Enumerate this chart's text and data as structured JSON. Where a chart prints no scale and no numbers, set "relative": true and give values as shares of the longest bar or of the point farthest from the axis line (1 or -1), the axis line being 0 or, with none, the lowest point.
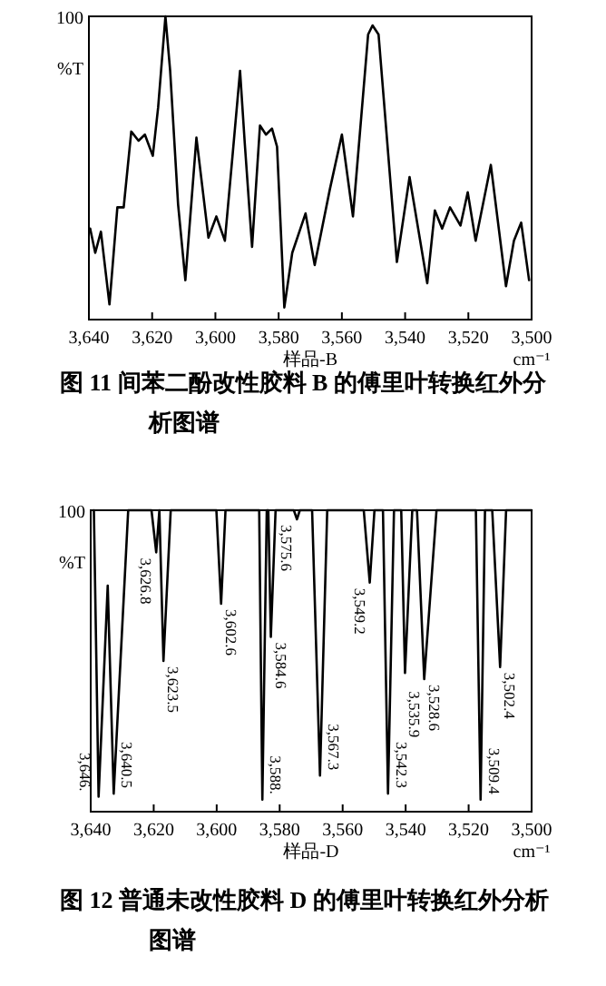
{
  "chart_data": [
    {
      "type": "line",
      "title": "图 11  间苯二酚改性胶料 B 的傅里叶转换红外分析图谱",
      "xlabel": "样品-B",
      "ylabel": "%T",
      "annotations": [
        "100",
        "cm⁻¹"
      ],
      "relative": true,
      "xlim": [
        3640,
        3500
      ],
      "xticks": [
        {
          "value": 3640,
          "label": "3,640"
        },
        {
          "value": 3620,
          "label": "3,620"
        },
        {
          "value": 3600,
          "label": "3,600"
        },
        {
          "value": 3580,
          "label": "3,580"
        },
        {
          "value": 3560,
          "label": "3,560"
        },
        {
          "value": 3540,
          "label": "3,540"
        },
        {
          "value": 3520,
          "label": "3,520"
        },
        {
          "value": 3500,
          "label": "3,500"
        }
      ],
      "series": [
        {
          "color": "#000000",
          "x": [
            3639.6,
            3638,
            3636.2,
            3633.5,
            3631,
            3629,
            3626.6,
            3624.3,
            3622.3,
            3619.8,
            3618.1,
            3615.8,
            3614.3,
            3611.8,
            3609.5,
            3606,
            3602.2,
            3599.7,
            3597,
            3594.5,
            3592.2,
            3590.7,
            3588.4,
            3585.9,
            3584,
            3582.1,
            3580.5,
            3578.2,
            3575.7,
            3571.5,
            3568.6,
            3563.8,
            3560,
            3556.5,
            3551.7,
            3550.3,
            3548.4,
            3542.6,
            3538.6,
            3533,
            3530.6,
            3528.3,
            3525.8,
            3522.5,
            3520.2,
            3517.7,
            3512.9,
            3508.1,
            3505.6,
            3503.3,
            3500.8
          ],
          "values": [
            0.3,
            0.22,
            0.29,
            0.05,
            0.37,
            0.37,
            0.62,
            0.59,
            0.61,
            0.54,
            0.7,
            1,
            0.82,
            0.38,
            0.13,
            0.6,
            0.27,
            0.34,
            0.26,
            0.55,
            0.82,
            0.58,
            0.24,
            0.64,
            0.61,
            0.63,
            0.57,
            0.04,
            0.22,
            0.35,
            0.18,
            0.43,
            0.61,
            0.34,
            0.94,
            0.97,
            0.94,
            0.19,
            0.47,
            0.12,
            0.36,
            0.3,
            0.37,
            0.31,
            0.42,
            0.26,
            0.51,
            0.11,
            0.26,
            0.32,
            0.13
          ]
        }
      ]
    },
    {
      "type": "line",
      "title": "图 12  普通未改性胶料 D 的傅里叶转换红外分析图谱",
      "xlabel": "样品-D",
      "ylabel": "%T",
      "relative": true,
      "xlim": [
        3640,
        3500
      ],
      "annotations": [
        "100",
        "cm⁻¹",
        {
          "text": "3,646.",
          "x": 3637.5,
          "y": 0.05
        },
        {
          "text": "3,640.5",
          "x": 3632.7,
          "y": 0.06
        },
        {
          "text": "3,626.8",
          "x": 3619.2,
          "y": 0.86
        },
        {
          "text": "3,623.5",
          "x": 3616.9,
          "y": 0.5
        },
        {
          "text": "3,602.6",
          "x": 3598.6,
          "y": 0.69
        },
        {
          "text": "3,588.",
          "x": 3585.5,
          "y": 0.04
        },
        {
          "text": "3,584.6",
          "x": 3582.8,
          "y": 0.58
        },
        {
          "text": "3,575.6",
          "x": 3574.5,
          "y": 0.97
        },
        {
          "text": "3,567.3",
          "x": 3567.2,
          "y": 0.12
        },
        {
          "text": "3,549.2",
          "x": 3551.4,
          "y": 0.76
        },
        {
          "text": "3,542.3",
          "x": 3545.6,
          "y": 0.06
        },
        {
          "text": "3,535.9",
          "x": 3540.2,
          "y": 0.46
        },
        {
          "text": "3,528.6",
          "x": 3534.1,
          "y": 0.44
        },
        {
          "text": "3,509.4",
          "x": 3516.2,
          "y": 0.04
        },
        {
          "text": "3,502.4",
          "x": 3510.0,
          "y": 0.48
        }
      ],
      "xticks": [
        {
          "value": 3640,
          "label": "3,640"
        },
        {
          "value": 3620,
          "label": "3,620"
        },
        {
          "value": 3600,
          "label": "3,600"
        },
        {
          "value": 3580,
          "label": "3,580"
        },
        {
          "value": 3560,
          "label": "3,560"
        },
        {
          "value": 3540,
          "label": "3,540"
        },
        {
          "value": 3520,
          "label": "3,520"
        },
        {
          "value": 3500,
          "label": "3,500"
        }
      ],
      "series": [
        {
          "color": "#000000",
          "x": [
            3639.0,
            3637.5,
            3634.6,
            3632.7,
            3628.1,
            3620.7,
            3619.2,
            3618.2,
            3616.9,
            3614.6,
            3600.1,
            3598.6,
            3597.2,
            3586.5,
            3585.5,
            3584.1,
            3583.6,
            3582.8,
            3581.3,
            3575.5,
            3574.5,
            3573.6,
            3569.7,
            3567.2,
            3564.9,
            3553.3,
            3551.4,
            3549.9,
            3547.2,
            3545.6,
            3543.7,
            3541.4,
            3540.2,
            3537.9,
            3536.4,
            3534.1,
            3530.2,
            3517.7,
            3516.2,
            3514.8,
            3512.5,
            3510.0,
            3508.1,
            3500
          ],
          "values": [
            1,
            0.05,
            0.75,
            0.06,
            1,
            1,
            0.86,
            1,
            0.5,
            1,
            1,
            0.69,
            1,
            1,
            0.04,
            1,
            1,
            0.58,
            1,
            1,
            0.97,
            1,
            1,
            0.12,
            1,
            1,
            0.76,
            1,
            1,
            0.06,
            1,
            1,
            0.46,
            1,
            1,
            0.44,
            1,
            1,
            0.04,
            1,
            1,
            0.48,
            1,
            1
          ]
        }
      ]
    }
  ]
}
